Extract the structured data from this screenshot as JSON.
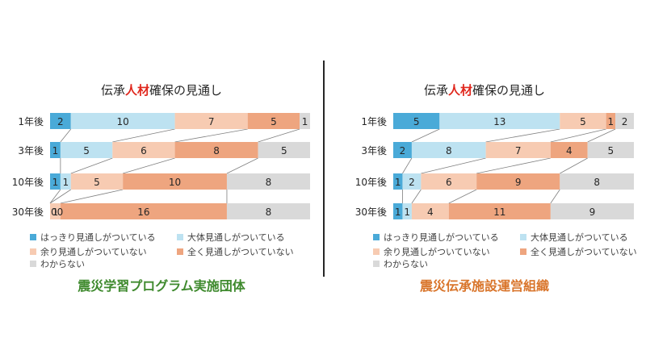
{
  "colors": {
    "very": "#4aaad8",
    "mostly": "#bde2f1",
    "little": "#f7cbb2",
    "none": "#eea57f",
    "unknown": "#d9d9d9",
    "title_highlight": "#e0271d",
    "org_left": "#3f8a2e",
    "org_right": "#d9752b"
  },
  "charts": [
    {
      "title_pre": "伝承",
      "title_hl": "人材",
      "title_post": "確保の見通し",
      "org_label": "震災学習プログラム実施団体",
      "org_color": "#3f8a2e",
      "legend": [
        {
          "key": "very",
          "label": "はっきり見通しがついている"
        },
        {
          "key": "mostly",
          "label": "大体見通しがついている"
        },
        {
          "key": "little",
          "label": "余り見通しがついていない"
        },
        {
          "key": "none",
          "label": "全く見通しがついていない"
        },
        {
          "key": "unknown",
          "label": "わからない"
        }
      ]
    },
    {
      "title_pre": "伝承",
      "title_hl": "人材",
      "title_post": "確保の見通し",
      "org_label": "震災伝承施設運営組織",
      "org_color": "#d9752b",
      "legend": [
        {
          "key": "very",
          "label": "はっきり見通しがついている"
        },
        {
          "key": "mostly",
          "label": "大体見通しがついている"
        },
        {
          "key": "little",
          "label": "余り見通しがついていない"
        },
        {
          "key": "none",
          "label": "全く見通しがついていない"
        },
        {
          "key": "unknown",
          "label": "わからない"
        }
      ]
    }
  ],
  "chart_data": [
    {
      "type": "bar",
      "orientation": "horizontal",
      "stacked": "100%",
      "title": "伝承人材確保の見通し",
      "categories": [
        "1年後",
        "3年後",
        "10年後",
        "30年後"
      ],
      "series": [
        {
          "name": "はっきり見通しがついている",
          "key": "very",
          "values": [
            2,
            1,
            1,
            0
          ]
        },
        {
          "name": "大体見通しがついている",
          "key": "mostly",
          "values": [
            10,
            5,
            1,
            0
          ]
        },
        {
          "name": "余り見通しがついていない",
          "key": "little",
          "values": [
            7,
            6,
            5,
            1
          ]
        },
        {
          "name": "全く見通しがついていない",
          "key": "none",
          "values": [
            5,
            8,
            10,
            16
          ]
        },
        {
          "name": "わからない",
          "key": "unknown",
          "values": [
            1,
            5,
            8,
            8
          ]
        }
      ],
      "legend_position": "bottom",
      "series_lines": true
    },
    {
      "type": "bar",
      "orientation": "horizontal",
      "stacked": "100%",
      "title": "伝承人材確保の見通し",
      "categories": [
        "1年後",
        "3年後",
        "10年後",
        "30年後"
      ],
      "series": [
        {
          "name": "はっきり見通しがついている",
          "key": "very",
          "values": [
            5,
            2,
            1,
            1
          ]
        },
        {
          "name": "大体見通しがついている",
          "key": "mostly",
          "values": [
            13,
            8,
            2,
            1
          ]
        },
        {
          "name": "余り見通しがついていない",
          "key": "little",
          "values": [
            5,
            7,
            6,
            4
          ]
        },
        {
          "name": "全く見通しがついていない",
          "key": "none",
          "values": [
            1,
            4,
            9,
            11
          ]
        },
        {
          "name": "わからない",
          "key": "unknown",
          "values": [
            2,
            5,
            8,
            9
          ]
        }
      ],
      "legend_position": "bottom",
      "series_lines": true
    }
  ]
}
